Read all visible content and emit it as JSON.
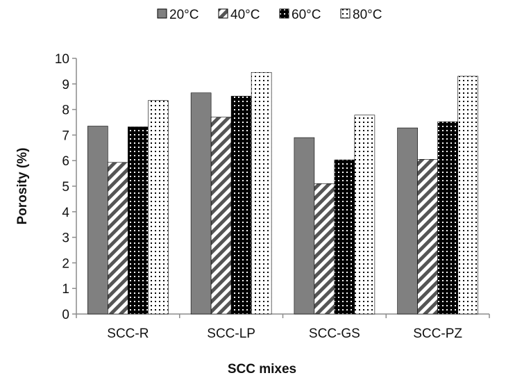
{
  "chart_data": {
    "type": "bar",
    "title": "",
    "xlabel": "SCC mixes",
    "ylabel": "Porosity (%)",
    "categories": [
      "SCC-R",
      "SCC-LP",
      "SCC-GS",
      "SCC-PZ"
    ],
    "series": [
      {
        "name": "20°C",
        "values": [
          7.35,
          8.65,
          6.9,
          7.28
        ],
        "pattern": "solid-gray",
        "color": "#808080"
      },
      {
        "name": "40°C",
        "values": [
          5.93,
          7.7,
          5.1,
          6.05
        ],
        "pattern": "diagonal-stripes",
        "color": "#404040"
      },
      {
        "name": "60°C",
        "values": [
          7.32,
          8.52,
          6.03,
          7.52
        ],
        "pattern": "black-dots",
        "color": "#000000"
      },
      {
        "name": "80°C",
        "values": [
          8.35,
          9.45,
          7.78,
          9.3
        ],
        "pattern": "white-dots",
        "color": "#000000"
      }
    ],
    "ylim": [
      0,
      10
    ],
    "yticks": [
      0,
      1,
      2,
      3,
      4,
      5,
      6,
      7,
      8,
      9,
      10
    ],
    "grid": false,
    "legend_position": "top-center"
  }
}
